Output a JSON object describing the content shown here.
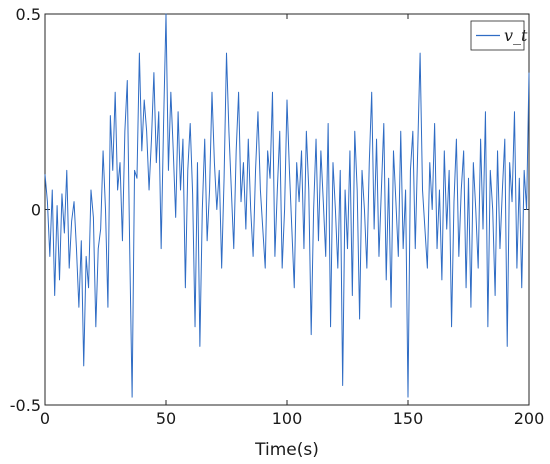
{
  "chart_data": {
    "type": "line",
    "title": "",
    "xlabel": "Time(s)",
    "ylabel": "",
    "xlim": [
      0,
      200
    ],
    "ylim": [
      -0.5,
      0.5
    ],
    "x_ticks": [
      0,
      50,
      100,
      150,
      200
    ],
    "x_tick_labels": [
      "0",
      "50",
      "100",
      "150",
      "200"
    ],
    "y_ticks": [
      -0.5,
      0,
      0.5
    ],
    "y_tick_labels": [
      "-0.5",
      "0",
      "0.5"
    ],
    "grid": false,
    "legend_position": "top-right",
    "line_color": "#2f6cc4",
    "series": [
      {
        "name": "v_t",
        "x": [
          0,
          1,
          2,
          3,
          4,
          5,
          6,
          7,
          8,
          9,
          10,
          11,
          12,
          13,
          14,
          15,
          16,
          17,
          18,
          19,
          20,
          21,
          22,
          23,
          24,
          25,
          26,
          27,
          28,
          29,
          30,
          31,
          32,
          33,
          34,
          35,
          36,
          37,
          38,
          39,
          40,
          41,
          42,
          43,
          44,
          45,
          46,
          47,
          48,
          49,
          50,
          51,
          52,
          53,
          54,
          55,
          56,
          57,
          58,
          59,
          60,
          61,
          62,
          63,
          64,
          65,
          66,
          67,
          68,
          69,
          70,
          71,
          72,
          73,
          74,
          75,
          76,
          77,
          78,
          79,
          80,
          81,
          82,
          83,
          84,
          85,
          86,
          87,
          88,
          89,
          90,
          91,
          92,
          93,
          94,
          95,
          96,
          97,
          98,
          99,
          100,
          101,
          102,
          103,
          104,
          105,
          106,
          107,
          108,
          109,
          110,
          111,
          112,
          113,
          114,
          115,
          116,
          117,
          118,
          119,
          120,
          121,
          122,
          123,
          124,
          125,
          126,
          127,
          128,
          129,
          130,
          131,
          132,
          133,
          134,
          135,
          136,
          137,
          138,
          139,
          140,
          141,
          142,
          143,
          144,
          145,
          146,
          147,
          148,
          149,
          150,
          151,
          152,
          153,
          154,
          155,
          156,
          157,
          158,
          159,
          160,
          161,
          162,
          163,
          164,
          165,
          166,
          167,
          168,
          169,
          170,
          171,
          172,
          173,
          174,
          175,
          176,
          177,
          178,
          179,
          180,
          181,
          182,
          183,
          184,
          185,
          186,
          187,
          188,
          189,
          190,
          191,
          192,
          193,
          194,
          195,
          196,
          197,
          198,
          199,
          200
        ],
        "y": [
          0.09,
          0.02,
          -0.12,
          0.05,
          -0.22,
          0.01,
          -0.18,
          0.04,
          -0.06,
          0.1,
          -0.15,
          -0.03,
          0.02,
          -0.1,
          -0.25,
          -0.08,
          -0.4,
          -0.12,
          -0.2,
          0.05,
          -0.02,
          -0.3,
          -0.1,
          -0.05,
          0.15,
          0.0,
          -0.25,
          0.24,
          0.1,
          0.3,
          0.05,
          0.12,
          -0.08,
          0.2,
          0.33,
          -0.1,
          -0.48,
          0.1,
          0.08,
          0.4,
          0.15,
          0.28,
          0.2,
          0.05,
          0.18,
          0.35,
          0.12,
          0.25,
          -0.1,
          0.22,
          0.5,
          0.1,
          0.3,
          0.15,
          -0.02,
          0.25,
          0.05,
          0.18,
          -0.2,
          0.1,
          0.22,
          0.04,
          -0.3,
          0.12,
          -0.35,
          0.0,
          0.18,
          -0.08,
          0.05,
          0.3,
          0.12,
          0.0,
          0.1,
          -0.15,
          0.08,
          0.4,
          0.2,
          0.05,
          -0.1,
          0.15,
          0.3,
          0.02,
          0.12,
          -0.05,
          0.18,
          0.0,
          -0.12,
          0.1,
          0.25,
          0.05,
          -0.05,
          -0.15,
          0.15,
          0.08,
          0.3,
          -0.12,
          0.05,
          0.2,
          -0.15,
          0.0,
          0.28,
          0.1,
          -0.05,
          -0.2,
          0.12,
          0.02,
          0.15,
          -0.1,
          0.2,
          0.05,
          -0.32,
          0.0,
          0.18,
          -0.08,
          0.15,
          0.02,
          -0.12,
          0.22,
          -0.3,
          0.12,
          0.0,
          -0.15,
          0.1,
          -0.45,
          0.05,
          -0.1,
          0.15,
          -0.22,
          0.2,
          0.05,
          -0.28,
          0.1,
          0.0,
          -0.15,
          0.12,
          0.3,
          -0.05,
          0.18,
          -0.12,
          0.05,
          0.22,
          -0.18,
          0.08,
          -0.25,
          0.15,
          0.02,
          -0.12,
          0.2,
          -0.1,
          0.05,
          -0.48,
          0.1,
          0.2,
          -0.1,
          0.15,
          0.4,
          0.05,
          -0.05,
          -0.15,
          0.12,
          0.0,
          0.22,
          -0.1,
          0.05,
          -0.18,
          0.15,
          -0.05,
          0.1,
          -0.3,
          0.02,
          0.18,
          -0.12,
          0.05,
          0.15,
          -0.2,
          0.08,
          -0.25,
          0.12,
          0.0,
          -0.15,
          0.18,
          -0.05,
          0.25,
          -0.3,
          0.1,
          0.0,
          -0.22,
          0.15,
          -0.1,
          0.05,
          0.18,
          -0.35,
          0.12,
          0.02,
          0.25,
          -0.15,
          0.08,
          -0.2,
          0.1,
          0.0,
          0.35
        ]
      }
    ]
  }
}
